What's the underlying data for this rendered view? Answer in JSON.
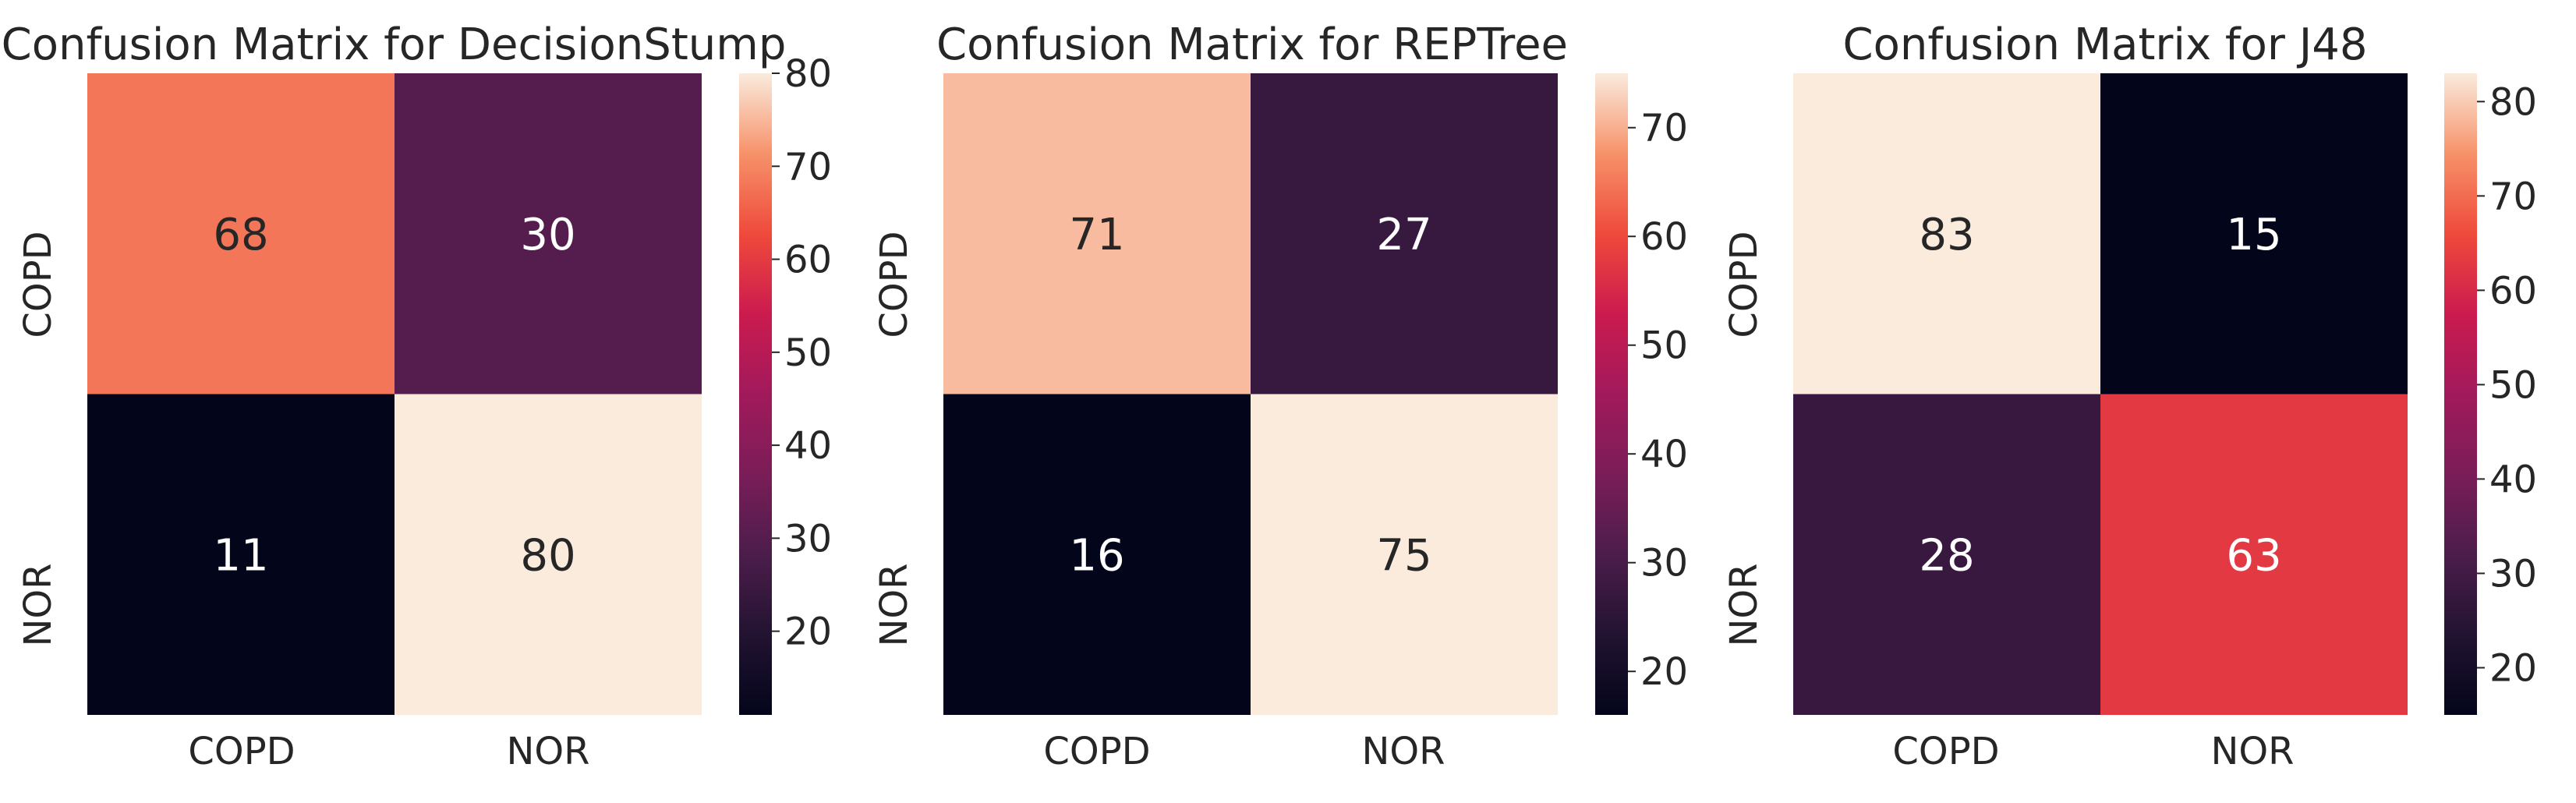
{
  "chart_data": [
    {
      "type": "heatmap",
      "title": "Confusion Matrix for DecisionStump",
      "x_categories": [
        "COPD",
        "NOR"
      ],
      "y_categories": [
        "COPD",
        "NOR"
      ],
      "values": [
        [
          68,
          30
        ],
        [
          11,
          80
        ]
      ],
      "colorbar_range": [
        11,
        80
      ],
      "colorbar_ticks": [
        20,
        30,
        40,
        50,
        60,
        70,
        80
      ],
      "colormap": "rocket"
    },
    {
      "type": "heatmap",
      "title": "Confusion Matrix for REPTree",
      "x_categories": [
        "COPD",
        "NOR"
      ],
      "y_categories": [
        "COPD",
        "NOR"
      ],
      "values": [
        [
          71,
          27
        ],
        [
          16,
          75
        ]
      ],
      "colorbar_range": [
        16,
        75
      ],
      "colorbar_ticks": [
        20,
        30,
        40,
        50,
        60,
        70
      ],
      "colormap": "rocket"
    },
    {
      "type": "heatmap",
      "title": "Confusion Matrix for J48",
      "x_categories": [
        "COPD",
        "NOR"
      ],
      "y_categories": [
        "COPD",
        "NOR"
      ],
      "values": [
        [
          83,
          15
        ],
        [
          28,
          63
        ]
      ],
      "colorbar_range": [
        15,
        83
      ],
      "colorbar_ticks": [
        20,
        30,
        40,
        50,
        60,
        70,
        80
      ],
      "colormap": "rocket"
    }
  ]
}
